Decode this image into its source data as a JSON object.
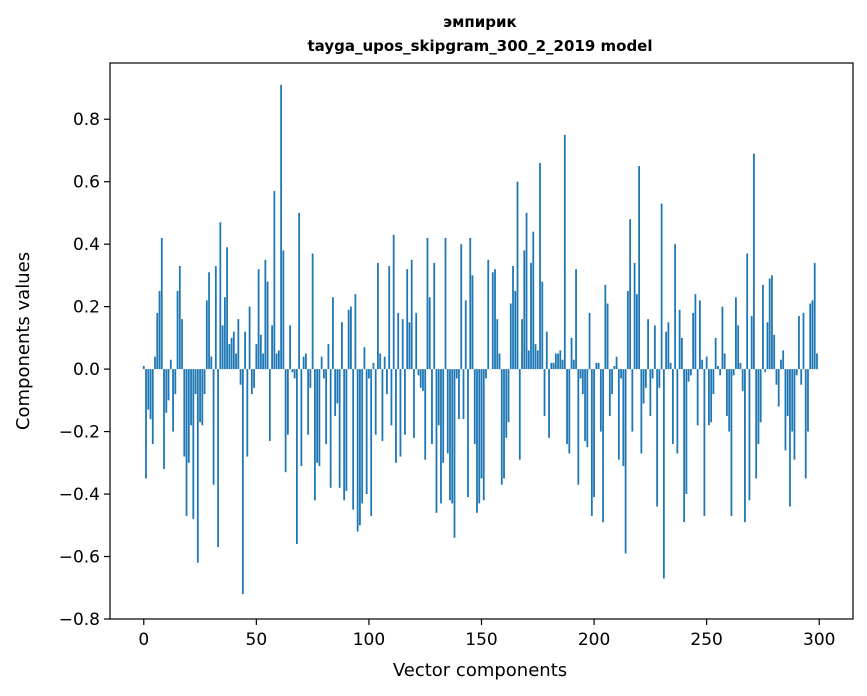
{
  "chart_data": {
    "type": "bar",
    "title": "эмпирик",
    "subtitle": "tayga_upos_skipgram_300_2_2019 model",
    "xlabel": "Vector components",
    "ylabel": "Components values",
    "xlim": [
      -15,
      315
    ],
    "ylim": [
      -0.8,
      0.98
    ],
    "xticks": [
      0,
      50,
      100,
      150,
      200,
      250,
      300
    ],
    "yticks": [
      -0.8,
      -0.6,
      -0.4,
      -0.2,
      0.0,
      0.2,
      0.4,
      0.6,
      0.8
    ],
    "ytick_labels": [
      "−0.8",
      "−0.6",
      "−0.4",
      "−0.2",
      "0.0",
      "0.2",
      "0.4",
      "0.6",
      "0.8"
    ],
    "grid": false,
    "bar_color": "#1f77b4",
    "values": [
      0.01,
      -0.35,
      -0.13,
      -0.16,
      -0.24,
      0.04,
      0.18,
      0.25,
      0.42,
      -0.32,
      -0.14,
      -0.1,
      0.03,
      -0.2,
      -0.08,
      0.25,
      0.33,
      0.16,
      -0.28,
      -0.47,
      -0.3,
      -0.18,
      -0.48,
      -0.08,
      -0.62,
      -0.17,
      -0.18,
      -0.08,
      0.22,
      0.31,
      0.04,
      -0.37,
      0.33,
      -0.57,
      0.47,
      0.14,
      0.23,
      0.39,
      0.08,
      0.1,
      0.12,
      0.05,
      0.16,
      -0.05,
      -0.72,
      0.12,
      -0.28,
      0.2,
      -0.08,
      -0.06,
      0.08,
      0.32,
      0.11,
      0.05,
      0.35,
      0.28,
      -0.23,
      0.14,
      0.57,
      0.05,
      0.06,
      0.91,
      0.38,
      -0.33,
      -0.21,
      0.14,
      -0.01,
      -0.03,
      -0.56,
      0.5,
      -0.31,
      0.04,
      0.05,
      -0.21,
      -0.06,
      0.37,
      -0.42,
      -0.3,
      -0.31,
      0.04,
      -0.03,
      -0.24,
      0.08,
      -0.38,
      0.23,
      -0.15,
      -0.11,
      -0.38,
      0.15,
      -0.42,
      -0.39,
      0.19,
      0.2,
      -0.45,
      0.24,
      -0.52,
      -0.5,
      -0.43,
      0.07,
      -0.4,
      -0.03,
      -0.47,
      0.02,
      -0.21,
      0.34,
      0.05,
      -0.23,
      0.04,
      -0.08,
      0.33,
      -0.18,
      0.43,
      -0.3,
      0.18,
      -0.28,
      0.16,
      -0.21,
      0.32,
      0.15,
      0.35,
      -0.22,
      0.18,
      -0.02,
      -0.06,
      -0.07,
      -0.29,
      0.42,
      0.23,
      -0.24,
      0.34,
      -0.46,
      -0.18,
      -0.43,
      -0.3,
      0.42,
      -0.27,
      -0.42,
      -0.43,
      -0.54,
      -0.03,
      -0.16,
      0.4,
      -0.16,
      0.22,
      -0.41,
      0.42,
      0.3,
      -0.24,
      -0.46,
      -0.43,
      -0.35,
      -0.42,
      -0.03,
      0.35,
      0.0,
      0.31,
      0.32,
      0.16,
      0.05,
      -0.37,
      -0.35,
      -0.22,
      -0.17,
      0.21,
      0.33,
      0.25,
      0.6,
      -0.29,
      0.16,
      0.38,
      0.5,
      0.06,
      0.34,
      0.44,
      0.08,
      0.06,
      0.66,
      0.28,
      -0.15,
      0.12,
      -0.22,
      0.02,
      0.02,
      0.05,
      0.05,
      0.06,
      0.03,
      0.75,
      -0.24,
      -0.27,
      0.1,
      0.03,
      0.32,
      -0.37,
      -0.03,
      -0.08,
      -0.23,
      -0.25,
      0.18,
      -0.47,
      -0.41,
      0.02,
      0.02,
      -0.2,
      -0.49,
      0.27,
      0.21,
      -0.15,
      -0.08,
      0.01,
      0.04,
      -0.29,
      -0.03,
      -0.31,
      -0.59,
      0.25,
      0.48,
      -0.2,
      0.34,
      0.24,
      0.65,
      -0.27,
      -0.11,
      -0.06,
      0.16,
      -0.15,
      -0.03,
      0.14,
      -0.44,
      -0.06,
      0.53,
      -0.67,
      0.12,
      0.15,
      0.02,
      -0.24,
      0.4,
      -0.27,
      0.19,
      0.1,
      -0.49,
      -0.4,
      -0.04,
      -0.02,
      0.18,
      0.24,
      -0.18,
      0.22,
      0.03,
      -0.47,
      0.04,
      -0.18,
      -0.17,
      -0.08,
      0.1,
      0.01,
      -0.02,
      0.2,
      0.05,
      -0.15,
      -0.2,
      -0.47,
      -0.02,
      0.23,
      0.14,
      0.02,
      -0.07,
      -0.49,
      0.37,
      -0.42,
      0.17,
      0.69,
      -0.35,
      -0.24,
      -0.17,
      0.27,
      -0.01,
      0.15,
      0.29,
      0.3,
      0.11,
      -0.05,
      -0.12,
      0.03,
      0.06,
      -0.26,
      -0.15,
      -0.44,
      -0.2,
      -0.29,
      -0.02,
      0.17,
      -0.05,
      0.18,
      -0.35,
      -0.2,
      0.21,
      0.22,
      0.34,
      0.05
    ]
  }
}
